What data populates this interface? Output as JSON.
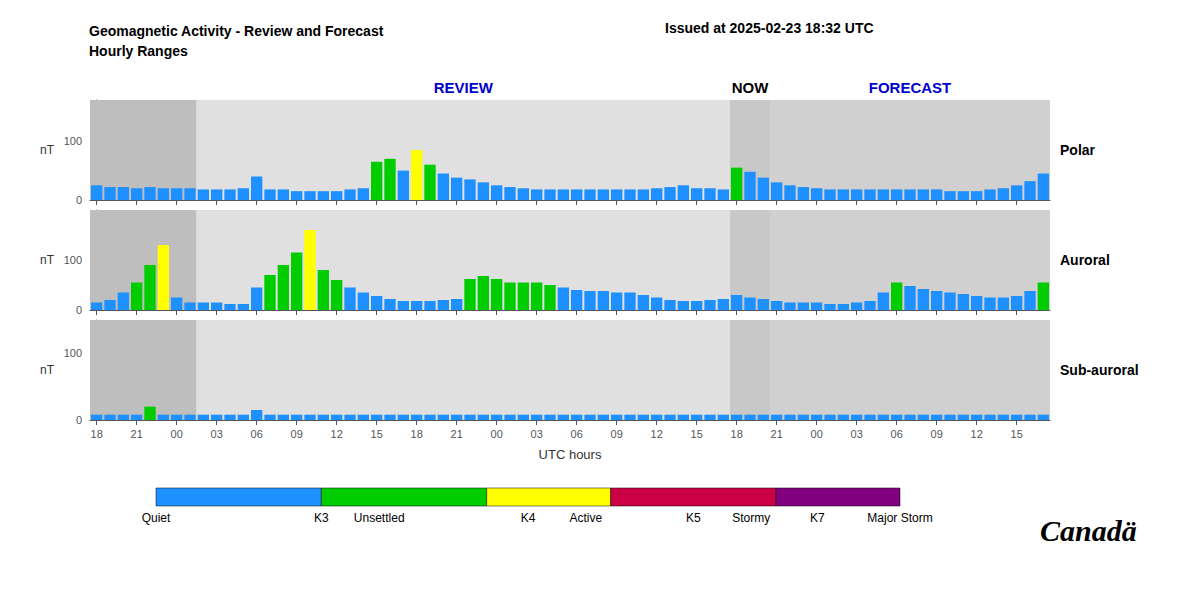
{
  "chart_data": [
    {
      "type": "bar",
      "title": "Geomagnetic Activity - Review and Forecast\nHourly Ranges",
      "subtitle": "Issued at 2025-02-23 18:32 UTC",
      "label": "Polar",
      "ylabel": "nT",
      "categories": [
        "18",
        null,
        null,
        "21",
        null,
        null,
        "00",
        null,
        null,
        "03",
        null,
        null,
        "06",
        null,
        null,
        "09",
        null,
        null,
        "12",
        null,
        null,
        "15",
        null,
        null,
        "18",
        null,
        null,
        "21",
        null,
        null,
        "00",
        null,
        null,
        "03",
        null,
        null,
        "06",
        null,
        null,
        "09",
        null,
        null,
        "12",
        null,
        null,
        "15",
        null,
        null,
        "18",
        null,
        null,
        "21",
        null,
        null,
        "00",
        null,
        null,
        "03",
        null,
        null,
        "06",
        null,
        null,
        "09",
        null,
        null,
        "12",
        null,
        null,
        "15",
        null,
        null
      ],
      "values": [
        25,
        22,
        22,
        20,
        22,
        20,
        20,
        20,
        18,
        18,
        18,
        20,
        40,
        18,
        18,
        15,
        15,
        15,
        15,
        18,
        20,
        65,
        70,
        50,
        85,
        60,
        45,
        38,
        35,
        30,
        25,
        22,
        20,
        18,
        18,
        18,
        18,
        18,
        18,
        18,
        18,
        18,
        20,
        22,
        25,
        20,
        20,
        18,
        55,
        48,
        38,
        30,
        25,
        22,
        20,
        18,
        18,
        18,
        18,
        18,
        18,
        18,
        18,
        18,
        15,
        15,
        15,
        18,
        20,
        25,
        32,
        45
      ],
      "colors": [
        "#1e90ff",
        "#1e90ff",
        "#1e90ff",
        "#1e90ff",
        "#1e90ff",
        "#1e90ff",
        "#1e90ff",
        "#1e90ff",
        "#1e90ff",
        "#1e90ff",
        "#1e90ff",
        "#1e90ff",
        "#1e90ff",
        "#1e90ff",
        "#1e90ff",
        "#1e90ff",
        "#1e90ff",
        "#1e90ff",
        "#1e90ff",
        "#1e90ff",
        "#1e90ff",
        "#00cc00",
        "#00cc00",
        "#1e90ff",
        "#ffff00",
        "#00cc00",
        "#1e90ff",
        "#1e90ff",
        "#1e90ff",
        "#1e90ff",
        "#1e90ff",
        "#1e90ff",
        "#1e90ff",
        "#1e90ff",
        "#1e90ff",
        "#1e90ff",
        "#1e90ff",
        "#1e90ff",
        "#1e90ff",
        "#1e90ff",
        "#1e90ff",
        "#1e90ff",
        "#1e90ff",
        "#1e90ff",
        "#1e90ff",
        "#1e90ff",
        "#1e90ff",
        "#1e90ff",
        "#00cc00",
        "#1e90ff",
        "#1e90ff",
        "#1e90ff",
        "#1e90ff",
        "#1e90ff",
        "#1e90ff",
        "#1e90ff",
        "#1e90ff",
        "#1e90ff",
        "#1e90ff",
        "#1e90ff",
        "#1e90ff",
        "#1e90ff",
        "#1e90ff",
        "#1e90ff",
        "#1e90ff",
        "#1e90ff",
        "#1e90ff",
        "#1e90ff",
        "#1e90ff",
        "#1e90ff",
        "#1e90ff",
        "#1e90ff"
      ],
      "ylim": [
        0,
        170
      ],
      "yticks": [
        0,
        100
      ],
      "grid": false,
      "tick_labels": "y",
      "regions": [
        {
          "start": 0,
          "end": 7,
          "color": "#bebebe"
        },
        {
          "start": 8,
          "end": 47,
          "color": "#e0e0e0",
          "label": "REVIEW",
          "label_color": "#0000cc"
        },
        {
          "start": 48,
          "end": 50,
          "color": "#c8c8c8",
          "label": "NOW",
          "label_color": "#000000"
        },
        {
          "start": 51,
          "end": 71,
          "color": "#d0d0d0",
          "label": "FORECAST",
          "label_color": "#0000cc"
        }
      ]
    },
    {
      "type": "bar",
      "label": "Auroral",
      "ylabel": "nT",
      "categories": [
        "18",
        null,
        null,
        "21",
        null,
        null,
        "00",
        null,
        null,
        "03",
        null,
        null,
        "06",
        null,
        null,
        "09",
        null,
        null,
        "12",
        null,
        null,
        "15",
        null,
        null,
        "18",
        null,
        null,
        "21",
        null,
        null,
        "00",
        null,
        null,
        "03",
        null,
        null,
        "06",
        null,
        null,
        "09",
        null,
        null,
        "12",
        null,
        null,
        "15",
        null,
        null,
        "18",
        null,
        null,
        "21",
        null,
        null,
        "00",
        null,
        null,
        "03",
        null,
        null,
        "06",
        null,
        null,
        "09",
        null,
        null,
        "12",
        null,
        null,
        "15",
        null,
        null
      ],
      "values": [
        15,
        20,
        35,
        55,
        90,
        130,
        25,
        15,
        15,
        15,
        12,
        12,
        45,
        70,
        90,
        115,
        160,
        80,
        60,
        45,
        35,
        28,
        22,
        18,
        18,
        18,
        20,
        22,
        62,
        68,
        62,
        55,
        55,
        55,
        50,
        45,
        40,
        38,
        38,
        35,
        35,
        30,
        25,
        20,
        18,
        18,
        20,
        22,
        30,
        25,
        22,
        18,
        15,
        15,
        15,
        12,
        12,
        15,
        18,
        35,
        55,
        48,
        42,
        38,
        35,
        32,
        28,
        25,
        25,
        28,
        38,
        55
      ],
      "colors": [
        "#1e90ff",
        "#1e90ff",
        "#1e90ff",
        "#00cc00",
        "#00cc00",
        "#ffff00",
        "#1e90ff",
        "#1e90ff",
        "#1e90ff",
        "#1e90ff",
        "#1e90ff",
        "#1e90ff",
        "#1e90ff",
        "#00cc00",
        "#00cc00",
        "#00cc00",
        "#ffff00",
        "#00cc00",
        "#00cc00",
        "#1e90ff",
        "#1e90ff",
        "#1e90ff",
        "#1e90ff",
        "#1e90ff",
        "#1e90ff",
        "#1e90ff",
        "#1e90ff",
        "#1e90ff",
        "#00cc00",
        "#00cc00",
        "#00cc00",
        "#00cc00",
        "#00cc00",
        "#00cc00",
        "#00cc00",
        "#1e90ff",
        "#1e90ff",
        "#1e90ff",
        "#1e90ff",
        "#1e90ff",
        "#1e90ff",
        "#1e90ff",
        "#1e90ff",
        "#1e90ff",
        "#1e90ff",
        "#1e90ff",
        "#1e90ff",
        "#1e90ff",
        "#1e90ff",
        "#1e90ff",
        "#1e90ff",
        "#1e90ff",
        "#1e90ff",
        "#1e90ff",
        "#1e90ff",
        "#1e90ff",
        "#1e90ff",
        "#1e90ff",
        "#1e90ff",
        "#1e90ff",
        "#00cc00",
        "#1e90ff",
        "#1e90ff",
        "#1e90ff",
        "#1e90ff",
        "#1e90ff",
        "#1e90ff",
        "#1e90ff",
        "#1e90ff",
        "#1e90ff",
        "#1e90ff",
        "#00cc00"
      ],
      "ylim": [
        0,
        200
      ],
      "yticks": [
        0,
        100
      ],
      "grid": false,
      "tick_labels": "y",
      "regions": [
        {
          "start": 0,
          "end": 7,
          "color": "#bebebe"
        },
        {
          "start": 8,
          "end": 47,
          "color": "#e0e0e0"
        },
        {
          "start": 48,
          "end": 50,
          "color": "#c8c8c8"
        },
        {
          "start": 51,
          "end": 71,
          "color": "#d0d0d0"
        }
      ]
    },
    {
      "type": "bar",
      "label": "Sub-auroral",
      "ylabel": "nT",
      "xlabel": "UTC hours",
      "categories": [
        "18",
        null,
        null,
        "21",
        null,
        null,
        "00",
        null,
        null,
        "03",
        null,
        null,
        "06",
        null,
        null,
        "09",
        null,
        null,
        "12",
        null,
        null,
        "15",
        null,
        null,
        "18",
        null,
        null,
        "21",
        null,
        null,
        "00",
        null,
        null,
        "03",
        null,
        null,
        "06",
        null,
        null,
        "09",
        null,
        null,
        "12",
        null,
        null,
        "15",
        null,
        null,
        "18",
        null,
        null,
        "21",
        null,
        null,
        "00",
        null,
        null,
        "03",
        null,
        null,
        "06",
        null,
        null,
        "09",
        null,
        null,
        "12",
        null,
        null,
        "15",
        null,
        null
      ],
      "values": [
        8,
        8,
        8,
        8,
        20,
        8,
        8,
        8,
        8,
        8,
        8,
        8,
        15,
        8,
        8,
        8,
        8,
        8,
        8,
        8,
        8,
        8,
        8,
        8,
        8,
        8,
        8,
        8,
        8,
        8,
        8,
        8,
        8,
        8,
        8,
        8,
        8,
        8,
        8,
        8,
        8,
        8,
        8,
        8,
        8,
        8,
        8,
        8,
        8,
        8,
        8,
        8,
        8,
        8,
        8,
        8,
        8,
        8,
        8,
        8,
        8,
        8,
        8,
        8,
        8,
        8,
        8,
        8,
        8,
        8,
        8,
        8
      ],
      "colors": [
        "#1e90ff",
        "#1e90ff",
        "#1e90ff",
        "#1e90ff",
        "#00cc00",
        "#1e90ff",
        "#1e90ff",
        "#1e90ff",
        "#1e90ff",
        "#1e90ff",
        "#1e90ff",
        "#1e90ff",
        "#1e90ff",
        "#1e90ff",
        "#1e90ff",
        "#1e90ff",
        "#1e90ff",
        "#1e90ff",
        "#1e90ff",
        "#1e90ff",
        "#1e90ff",
        "#1e90ff",
        "#1e90ff",
        "#1e90ff",
        "#1e90ff",
        "#1e90ff",
        "#1e90ff",
        "#1e90ff",
        "#1e90ff",
        "#1e90ff",
        "#1e90ff",
        "#1e90ff",
        "#1e90ff",
        "#1e90ff",
        "#1e90ff",
        "#1e90ff",
        "#1e90ff",
        "#1e90ff",
        "#1e90ff",
        "#1e90ff",
        "#1e90ff",
        "#1e90ff",
        "#1e90ff",
        "#1e90ff",
        "#1e90ff",
        "#1e90ff",
        "#1e90ff",
        "#1e90ff",
        "#1e90ff",
        "#1e90ff",
        "#1e90ff",
        "#1e90ff",
        "#1e90ff",
        "#1e90ff",
        "#1e90ff",
        "#1e90ff",
        "#1e90ff",
        "#1e90ff",
        "#1e90ff",
        "#1e90ff",
        "#1e90ff",
        "#1e90ff",
        "#1e90ff",
        "#1e90ff",
        "#1e90ff",
        "#1e90ff",
        "#1e90ff",
        "#1e90ff",
        "#1e90ff",
        "#1e90ff",
        "#1e90ff",
        "#1e90ff"
      ],
      "ylim": [
        0,
        150
      ],
      "yticks": [
        0,
        100
      ],
      "grid": false,
      "regions": [
        {
          "start": 0,
          "end": 7,
          "color": "#bebebe"
        },
        {
          "start": 8,
          "end": 47,
          "color": "#e0e0e0"
        },
        {
          "start": 48,
          "end": 50,
          "color": "#c8c8c8"
        },
        {
          "start": 51,
          "end": 71,
          "color": "#d0d0d0"
        }
      ],
      "color_legend": {
        "colors": [
          "#1e90ff",
          "#00cc00",
          "#ffff00",
          "#cc0044",
          "#800080"
        ],
        "labels": [
          "Quiet",
          "K3",
          "Unsettled",
          "K4",
          "Active",
          "K5",
          "Stormy",
          "K7",
          "Major Storm"
        ]
      },
      "annotations": [
        "Canadä"
      ]
    }
  ]
}
